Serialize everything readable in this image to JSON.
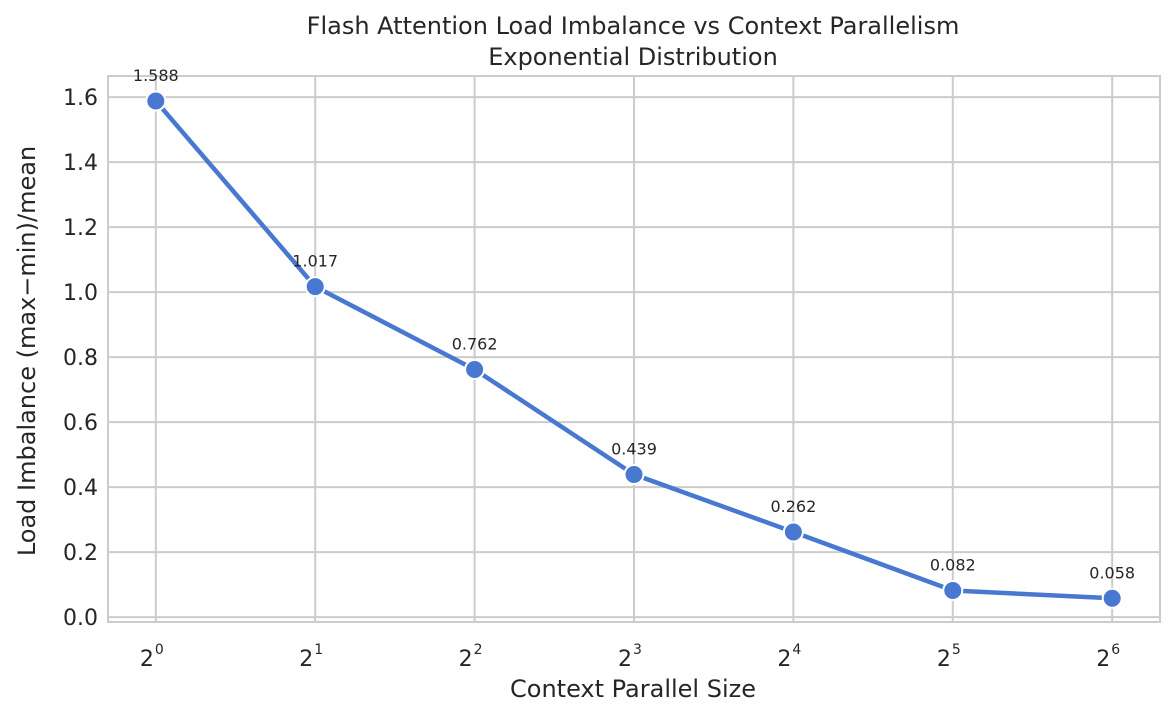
{
  "chart_data": {
    "type": "line",
    "title": "Flash Attention Load Imbalance vs Context Parallelism",
    "subtitle": "Exponential Distribution",
    "xlabel": "Context Parallel Size",
    "ylabel": "Load Imbalance (max−min)/mean",
    "x_scale": "log2",
    "x": [
      1,
      2,
      4,
      8,
      16,
      32,
      64
    ],
    "x_tick_labels": [
      {
        "base": "2",
        "exp": "0"
      },
      {
        "base": "2",
        "exp": "1"
      },
      {
        "base": "2",
        "exp": "2"
      },
      {
        "base": "2",
        "exp": "3"
      },
      {
        "base": "2",
        "exp": "4"
      },
      {
        "base": "2",
        "exp": "5"
      },
      {
        "base": "2",
        "exp": "6"
      }
    ],
    "series": [
      {
        "values": [
          1.588,
          1.017,
          0.762,
          0.439,
          0.262,
          0.082,
          0.058
        ],
        "data_labels": [
          "1.588",
          "1.017",
          "0.762",
          "0.439",
          "0.262",
          "0.082",
          "0.058"
        ],
        "color": "#4878d0"
      }
    ],
    "ylim": [
      -0.015,
      1.665
    ],
    "y_ticks": [
      0.0,
      0.2,
      0.4,
      0.6,
      0.8,
      1.0,
      1.2,
      1.4,
      1.6
    ],
    "y_tick_labels": [
      "0.0",
      "0.2",
      "0.4",
      "0.6",
      "0.8",
      "1.0",
      "1.2",
      "1.4",
      "1.6"
    ],
    "grid": true,
    "legend": false
  }
}
